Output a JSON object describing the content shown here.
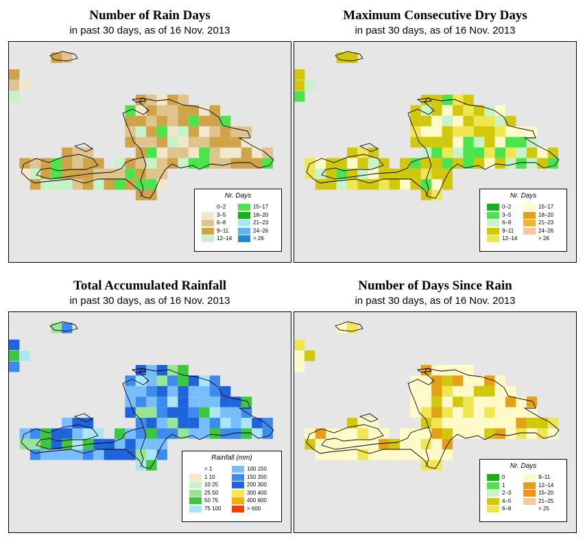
{
  "panels": [
    {
      "id": "rain_days",
      "title": "Number of Rain Days",
      "subtitle": "in past 30 days, as of  16 Nov. 2013",
      "legend": {
        "title": "Nr. Days",
        "items": [
          {
            "label": "0–2",
            "color": "#ffffff"
          },
          {
            "label": "3–5",
            "color": "#f2e6cc"
          },
          {
            "label": "6–8",
            "color": "#e0c48e"
          },
          {
            "label": "9–11",
            "color": "#cfa446"
          },
          {
            "label": "12–14",
            "color": "#c8f2c8"
          },
          {
            "label": "15–17",
            "color": "#4ce44c"
          },
          {
            "label": "18–20",
            "color": "#14b414"
          },
          {
            "label": "21–23",
            "color": "#a8e8f0"
          },
          {
            "label": "24–26",
            "color": "#64b4f0"
          },
          {
            "label": "> 26",
            "color": "#1e8cd2"
          }
        ]
      },
      "palette": [
        "#cfa446",
        "#e0c48e",
        "#f2e6cc",
        "#c8f2c8",
        "#e0c48e",
        "#cfa446",
        "#4ce44c",
        "#cfa446"
      ]
    },
    {
      "id": "max_dry",
      "title": "Maximum Consecutive Dry Days",
      "subtitle": "in past 30 days, as of  16 Nov. 2013",
      "legend": {
        "title": "Nr. Days",
        "items": [
          {
            "label": "0–2",
            "color": "#14b414"
          },
          {
            "label": "3–5",
            "color": "#4ce44c"
          },
          {
            "label": "6–8",
            "color": "#c8f2c8"
          },
          {
            "label": "9–11",
            "color": "#d2c80a"
          },
          {
            "label": "12–14",
            "color": "#f0e650"
          },
          {
            "label": "15–17",
            "color": "#fffac8"
          },
          {
            "label": "18–20",
            "color": "#e6a014"
          },
          {
            "label": "21–23",
            "color": "#f0b428"
          },
          {
            "label": "24–26",
            "color": "#fac8a0"
          },
          {
            "label": "> 26",
            "color": "#ffffff"
          }
        ]
      },
      "palette": [
        "#d2c80a",
        "#d2c80a",
        "#d2c80a",
        "#c8f2c8",
        "#4ce44c",
        "#d2c80a",
        "#fffac8",
        "#f0e650"
      ]
    },
    {
      "id": "total_rain",
      "title": "Total Accumulated Rainfall",
      "subtitle": "in past 30 days, as of  16 Nov. 2013",
      "legend": {
        "title": "Rainfall (mm)",
        "items": [
          {
            "label": "< 1",
            "color": "#ffffff"
          },
          {
            "label": "1   10",
            "color": "#f5e6c8"
          },
          {
            "label": "10   25",
            "color": "#c8f2c8"
          },
          {
            "label": "25   50",
            "color": "#96e696"
          },
          {
            "label": "50   75",
            "color": "#3cc83c"
          },
          {
            "label": "75  100",
            "color": "#aae6f5"
          },
          {
            "label": "100  150",
            "color": "#78beff"
          },
          {
            "label": "150  200",
            "color": "#3c8cf0"
          },
          {
            "label": "200  300",
            "color": "#1e64dc"
          },
          {
            "label": "300  400",
            "color": "#ffe650"
          },
          {
            "label": "400  600",
            "color": "#ffaa00"
          },
          {
            "label": "> 600",
            "color": "#ff3c00"
          }
        ]
      },
      "palette": [
        "#3c8cf0",
        "#78beff",
        "#1e64dc",
        "#3cc83c",
        "#aae6f5",
        "#3c8cf0",
        "#78beff",
        "#96e696"
      ]
    },
    {
      "id": "since_rain",
      "title": "Number of Days Since Rain",
      "subtitle": "in past 30 days, as of  16 Nov. 2013",
      "legend": {
        "title": "Nr. Days",
        "items": [
          {
            "label": "0",
            "color": "#14b414"
          },
          {
            "label": "1",
            "color": "#4ce44c"
          },
          {
            "label": "2–3",
            "color": "#c8f2c8"
          },
          {
            "label": "4–5",
            "color": "#d2c80a"
          },
          {
            "label": "6–8",
            "color": "#f0e650"
          },
          {
            "label": "9–11",
            "color": "#fffac8"
          },
          {
            "label": "12–14",
            "color": "#e6a014"
          },
          {
            "label": "15–20",
            "color": "#f09614"
          },
          {
            "label": "21–25",
            "color": "#fac8a0"
          },
          {
            "label": "> 25",
            "color": "#ffffff"
          }
        ]
      },
      "palette": [
        "#fffac8",
        "#fffac8",
        "#fffac8",
        "#f0e650",
        "#fffac8",
        "#d2c80a",
        "#fffac8",
        "#e6a014"
      ]
    }
  ]
}
